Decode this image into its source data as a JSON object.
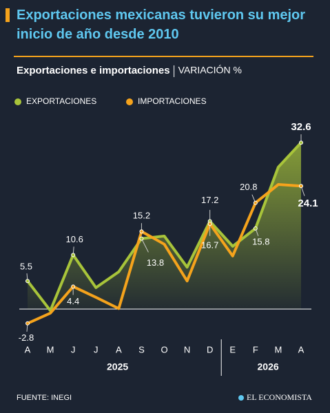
{
  "chart_data": {
    "type": "line",
    "title": "Exportaciones mexicanas tuvieron su mejor inicio de año desde 2010",
    "subtitle": "Exportaciones e importaciones",
    "unit_label": "VARIACIÓN %",
    "categories": [
      "A",
      "M",
      "J",
      "J",
      "A",
      "S",
      "O",
      "N",
      "D",
      "E",
      "F",
      "M",
      "A"
    ],
    "years": [
      "2025",
      "2026"
    ],
    "ylim": [
      -6,
      36
    ],
    "series": [
      {
        "name": "EXPORTACIONES",
        "color": "#a8c43a",
        "values": [
          5.5,
          -0.3,
          10.6,
          4.2,
          7.3,
          13.8,
          14.3,
          8.2,
          17.2,
          12.3,
          15.8,
          27.8,
          32.6
        ],
        "value_labels": [
          "5.5",
          null,
          "10.6",
          null,
          null,
          "13.8",
          null,
          null,
          "17.2",
          null,
          "15.8",
          null,
          "32.6"
        ]
      },
      {
        "name": "IMPORTACIONES",
        "color": "#f5a31c",
        "values": [
          -2.8,
          -0.8,
          4.4,
          2.3,
          0.1,
          15.2,
          12.7,
          5.5,
          16.7,
          10.4,
          20.8,
          24.4,
          24.1
        ],
        "value_labels": [
          "-2.8",
          null,
          "4.4",
          null,
          null,
          "15.2",
          null,
          null,
          "16.7",
          null,
          "20.8",
          null,
          "24.1"
        ]
      }
    ],
    "source": "FUENTE: INEGI",
    "brand": "EL ECONOMISTA"
  }
}
